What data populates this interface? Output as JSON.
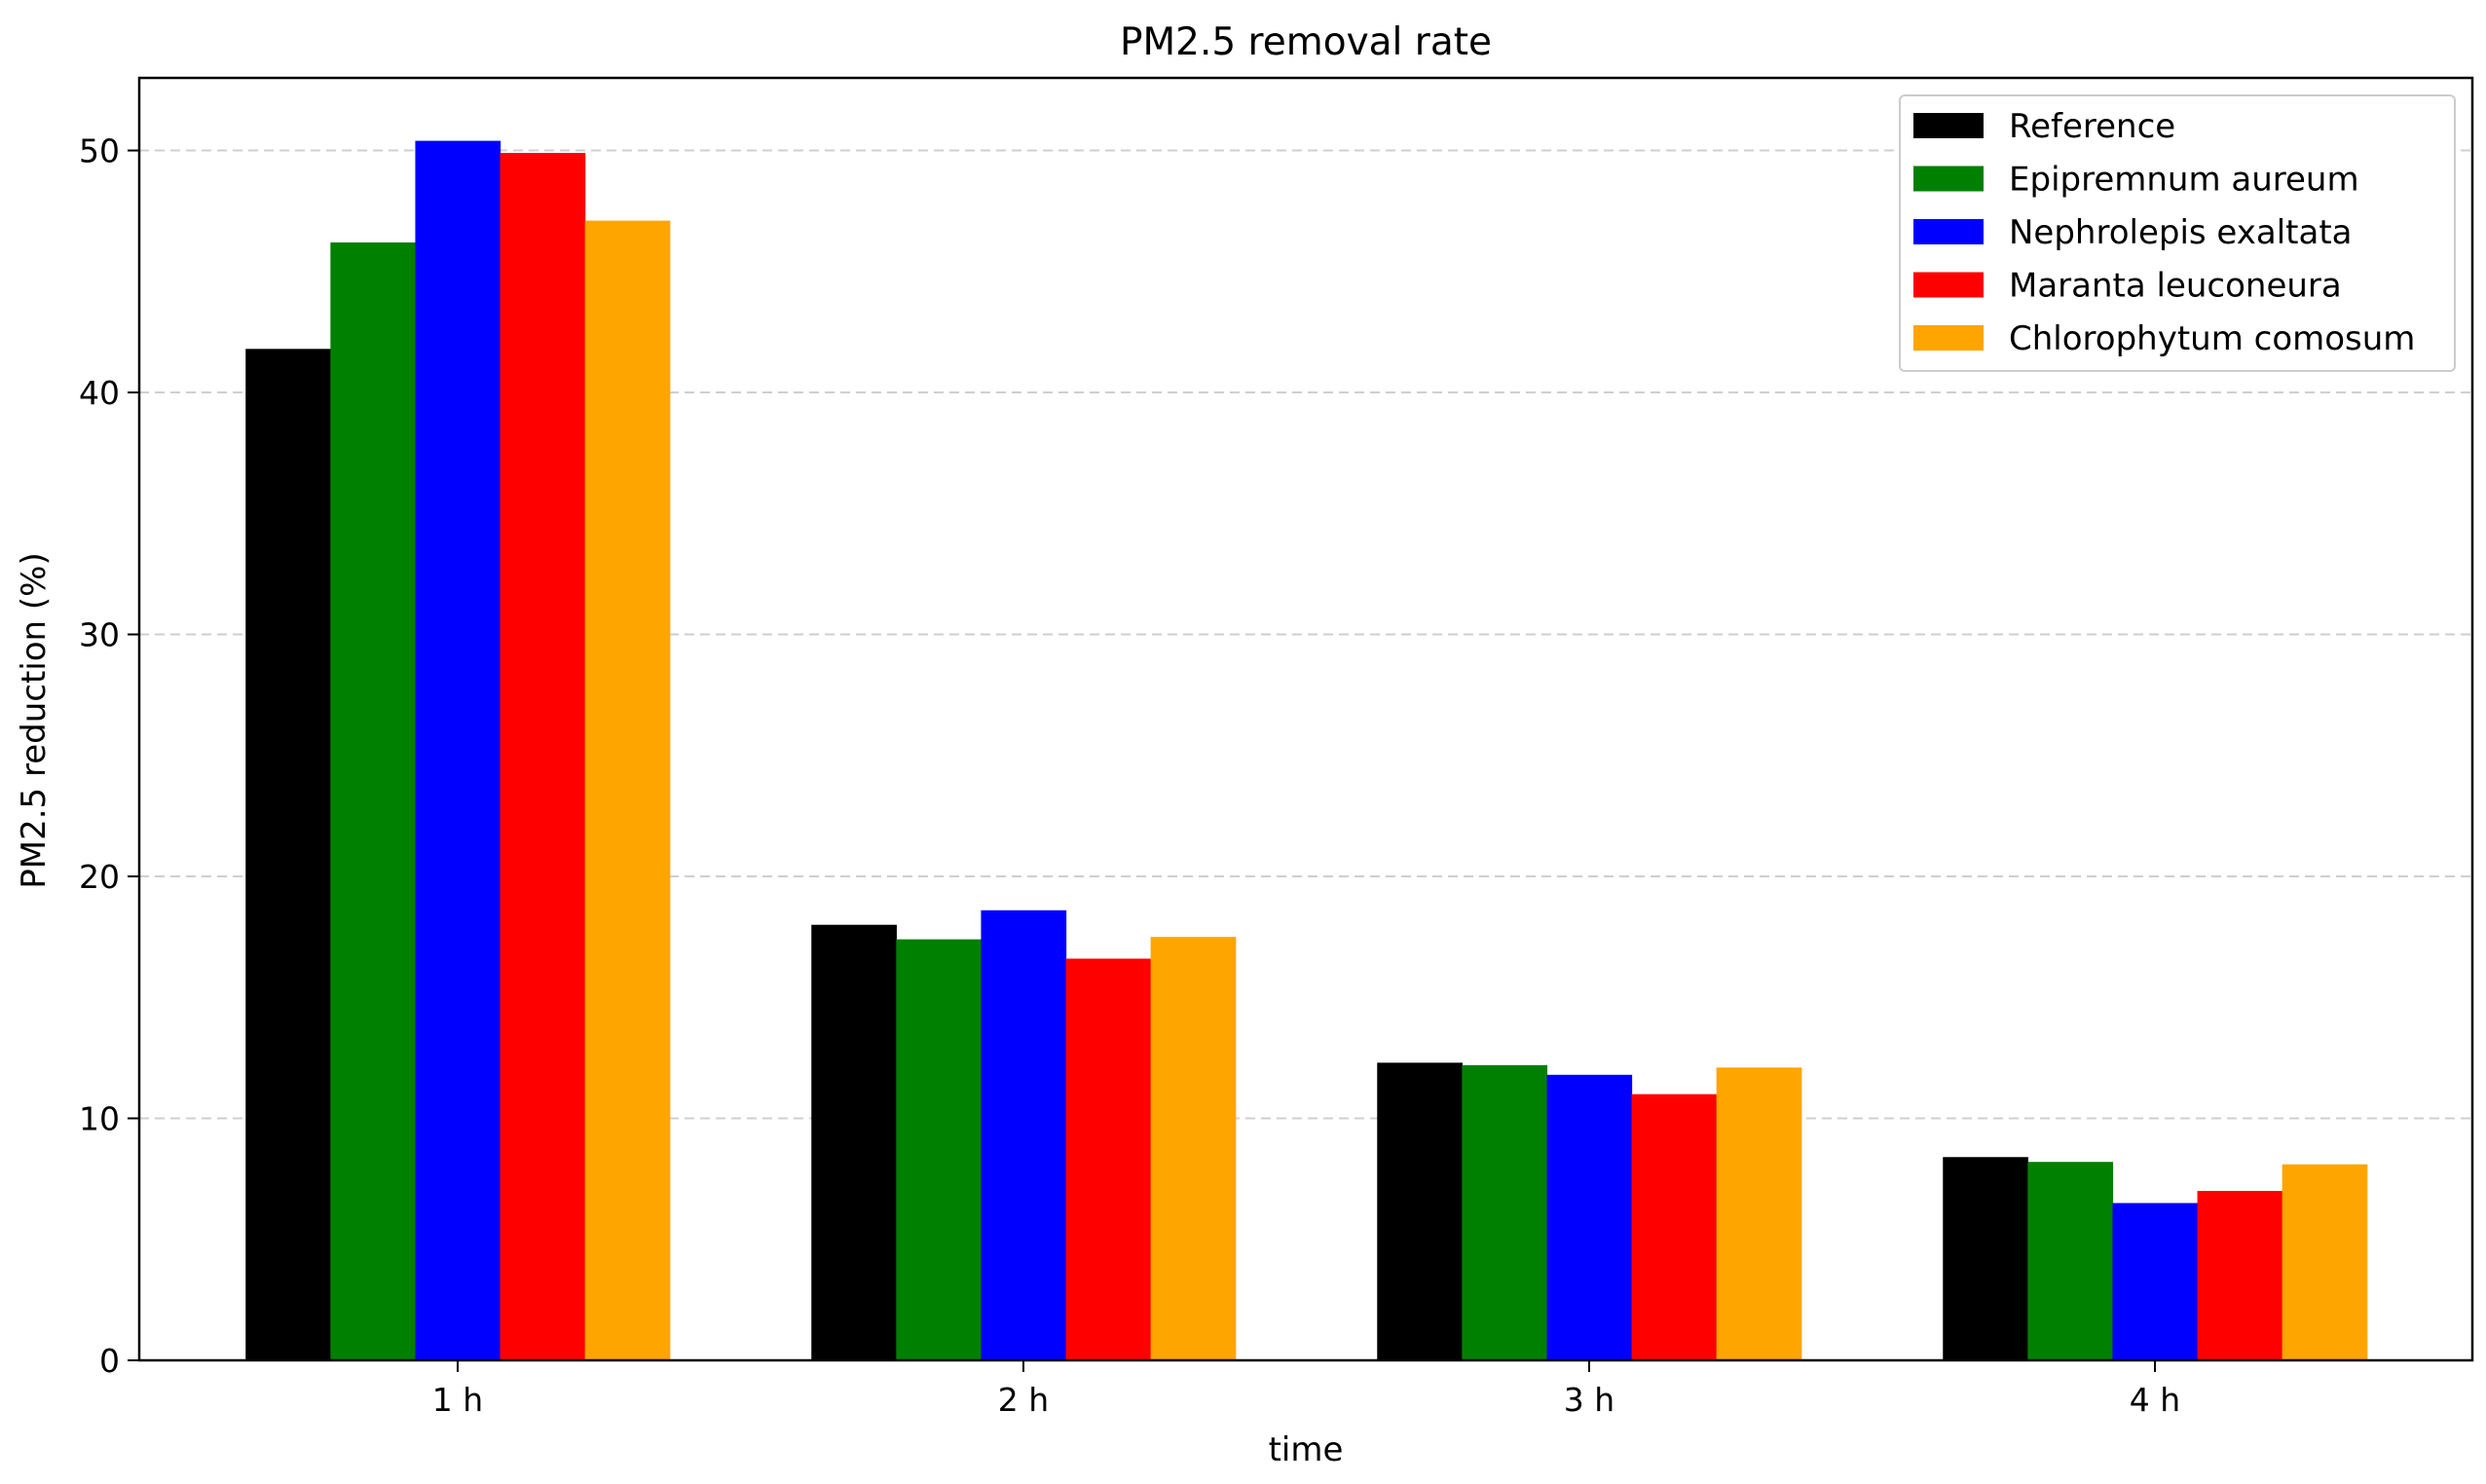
{
  "chart_data": {
    "type": "bar",
    "title": "PM2.5 removal rate",
    "xlabel": "time",
    "ylabel": "PM2.5 reduction (%)",
    "categories": [
      "1 h",
      "2 h",
      "3 h",
      "4 h"
    ],
    "ylim": [
      0,
      53
    ],
    "yticks": [
      0,
      10,
      20,
      30,
      40,
      50
    ],
    "grid": "y-dashed",
    "legend_position": "top-right",
    "series": [
      {
        "name": "Reference",
        "color": "#000000",
        "values": [
          41.8,
          18.0,
          12.3,
          8.4
        ]
      },
      {
        "name": "Epipremnum aureum",
        "color": "#008000",
        "values": [
          46.2,
          17.4,
          12.2,
          8.2
        ]
      },
      {
        "name": "Nephrolepis exaltata",
        "color": "#0000ff",
        "values": [
          50.4,
          18.6,
          11.8,
          6.5
        ]
      },
      {
        "name": "Maranta leuconeura",
        "color": "#ff0000",
        "values": [
          49.9,
          16.6,
          11.0,
          7.0
        ]
      },
      {
        "name": "Chlorophytum comosum",
        "color": "#ffa500",
        "values": [
          47.1,
          17.5,
          12.1,
          8.1
        ]
      }
    ]
  }
}
